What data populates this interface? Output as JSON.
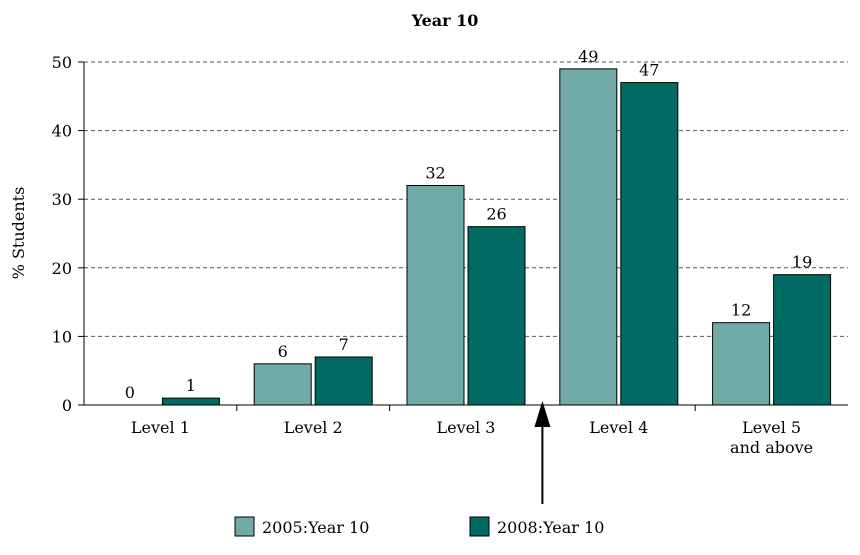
{
  "chart_data": {
    "type": "bar",
    "title": "Year 10",
    "xlabel": "",
    "ylabel": "% Students",
    "ylim": [
      0,
      50
    ],
    "yticks": [
      0,
      10,
      20,
      30,
      40,
      50
    ],
    "grid": true,
    "legend_position": "bottom",
    "categories": [
      "Level 1",
      "Level 2",
      "Level 3",
      "Level 4",
      "Level 5\nand above"
    ],
    "series": [
      {
        "name": "2005:Year 10",
        "color": "#6fa9a8",
        "values": [
          0,
          6,
          32,
          49,
          12
        ]
      },
      {
        "name": "2008:Year 10",
        "color": "#006b63",
        "values": [
          1,
          7,
          26,
          47,
          19
        ]
      }
    ],
    "annotations": [
      {
        "type": "arrow",
        "direction": "up",
        "between_categories": [
          "Level 3",
          "Level 4"
        ]
      }
    ]
  }
}
